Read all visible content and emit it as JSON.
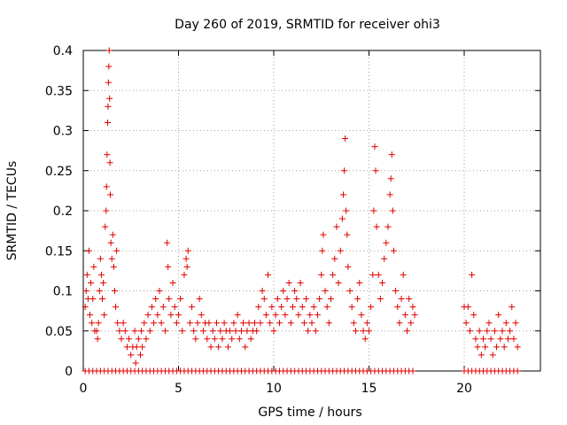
{
  "chart_data": {
    "type": "scatter",
    "title": "Day 260 of 2019, SRMTID for receiver ohi3",
    "xlabel": "GPS time / hours",
    "ylabel": "SRMTID / TECUs",
    "xlim": [
      0,
      24
    ],
    "ylim": [
      0,
      0.4
    ],
    "x_ticks": [
      0,
      5,
      10,
      15,
      20
    ],
    "x_tick_labels": [
      "0",
      "5",
      "10",
      "15",
      "20"
    ],
    "y_ticks": [
      0,
      0.05,
      0.1,
      0.15,
      0.2,
      0.25,
      0.3,
      0.35,
      0.4
    ],
    "y_tick_labels": [
      "0",
      "0.05",
      "0.1",
      "0.15",
      "0.2",
      "0.25",
      "0.3",
      "0.35",
      "0.4"
    ],
    "grid": true,
    "marker": "+",
    "color": "#e00000",
    "series": [
      {
        "name": "SRMTID",
        "points": [
          [
            0.1,
            0.08
          ],
          [
            0.15,
            0.1
          ],
          [
            0.2,
            0.12
          ],
          [
            0.25,
            0.09
          ],
          [
            0.3,
            0.15
          ],
          [
            0.35,
            0.07
          ],
          [
            0.4,
            0.11
          ],
          [
            0.45,
            0.06
          ],
          [
            0.5,
            0.09
          ],
          [
            0.55,
            0.13
          ],
          [
            0.6,
            0.05
          ],
          [
            0.7,
            0.05
          ],
          [
            0.75,
            0.04
          ],
          [
            0.8,
            0.06
          ],
          [
            0.85,
            0.1
          ],
          [
            0.9,
            0.14
          ],
          [
            0.95,
            0.12
          ],
          [
            1.0,
            0.09
          ],
          [
            1.05,
            0.11
          ],
          [
            1.1,
            0.07
          ],
          [
            1.15,
            0.18
          ],
          [
            1.2,
            0.2
          ],
          [
            1.22,
            0.23
          ],
          [
            1.25,
            0.27
          ],
          [
            1.28,
            0.31
          ],
          [
            1.3,
            0.33
          ],
          [
            1.32,
            0.36
          ],
          [
            1.34,
            0.38
          ],
          [
            1.36,
            0.4
          ],
          [
            1.38,
            0.34
          ],
          [
            1.4,
            0.26
          ],
          [
            1.42,
            0.22
          ],
          [
            1.45,
            0.16
          ],
          [
            1.5,
            0.14
          ],
          [
            1.55,
            0.17
          ],
          [
            1.6,
            0.13
          ],
          [
            1.65,
            0.1
          ],
          [
            1.7,
            0.08
          ],
          [
            1.75,
            0.15
          ],
          [
            1.8,
            0.06
          ],
          [
            1.9,
            0.05
          ],
          [
            2.0,
            0.04
          ],
          [
            2.1,
            0.06
          ],
          [
            2.2,
            0.05
          ],
          [
            2.3,
            0.03
          ],
          [
            2.4,
            0.04
          ],
          [
            2.5,
            0.02
          ],
          [
            2.6,
            0.03
          ],
          [
            2.7,
            0.05
          ],
          [
            2.75,
            0.01
          ],
          [
            2.8,
            0.03
          ],
          [
            2.9,
            0.04
          ],
          [
            3.0,
            0.02
          ],
          [
            3.05,
            0.05
          ],
          [
            3.1,
            0.03
          ],
          [
            3.2,
            0.06
          ],
          [
            3.3,
            0.04
          ],
          [
            3.4,
            0.07
          ],
          [
            3.5,
            0.05
          ],
          [
            3.6,
            0.08
          ],
          [
            3.7,
            0.06
          ],
          [
            3.8,
            0.09
          ],
          [
            3.9,
            0.07
          ],
          [
            4.0,
            0.1
          ],
          [
            4.1,
            0.06
          ],
          [
            4.2,
            0.08
          ],
          [
            4.3,
            0.05
          ],
          [
            4.4,
            0.16
          ],
          [
            4.45,
            0.13
          ],
          [
            4.5,
            0.09
          ],
          [
            4.6,
            0.07
          ],
          [
            4.7,
            0.11
          ],
          [
            4.8,
            0.08
          ],
          [
            4.9,
            0.06
          ],
          [
            5.0,
            0.07
          ],
          [
            5.1,
            0.09
          ],
          [
            5.2,
            0.05
          ],
          [
            5.3,
            0.12
          ],
          [
            5.4,
            0.14
          ],
          [
            5.45,
            0.13
          ],
          [
            5.5,
            0.15
          ],
          [
            5.6,
            0.06
          ],
          [
            5.7,
            0.08
          ],
          [
            5.8,
            0.05
          ],
          [
            5.9,
            0.04
          ],
          [
            6.0,
            0.06
          ],
          [
            6.1,
            0.09
          ],
          [
            6.2,
            0.07
          ],
          [
            6.3,
            0.05
          ],
          [
            6.4,
            0.06
          ],
          [
            6.5,
            0.04
          ],
          [
            6.6,
            0.06
          ],
          [
            6.7,
            0.03
          ],
          [
            6.8,
            0.05
          ],
          [
            6.9,
            0.04
          ],
          [
            7.0,
            0.06
          ],
          [
            7.1,
            0.03
          ],
          [
            7.2,
            0.05
          ],
          [
            7.3,
            0.04
          ],
          [
            7.4,
            0.06
          ],
          [
            7.5,
            0.05
          ],
          [
            7.6,
            0.03
          ],
          [
            7.7,
            0.05
          ],
          [
            7.8,
            0.04
          ],
          [
            7.9,
            0.06
          ],
          [
            8.0,
            0.05
          ],
          [
            8.1,
            0.07
          ],
          [
            8.2,
            0.04
          ],
          [
            8.3,
            0.05
          ],
          [
            8.4,
            0.06
          ],
          [
            8.5,
            0.03
          ],
          [
            8.6,
            0.05
          ],
          [
            8.7,
            0.06
          ],
          [
            8.8,
            0.04
          ],
          [
            8.9,
            0.05
          ],
          [
            9.0,
            0.06
          ],
          [
            9.1,
            0.05
          ],
          [
            9.2,
            0.08
          ],
          [
            9.3,
            0.06
          ],
          [
            9.4,
            0.1
          ],
          [
            9.5,
            0.09
          ],
          [
            9.6,
            0.07
          ],
          [
            9.7,
            0.12
          ],
          [
            9.8,
            0.06
          ],
          [
            9.9,
            0.08
          ],
          [
            10.0,
            0.05
          ],
          [
            10.1,
            0.07
          ],
          [
            10.2,
            0.09
          ],
          [
            10.3,
            0.06
          ],
          [
            10.4,
            0.08
          ],
          [
            10.5,
            0.1
          ],
          [
            10.6,
            0.07
          ],
          [
            10.7,
            0.09
          ],
          [
            10.8,
            0.11
          ],
          [
            10.9,
            0.06
          ],
          [
            11.0,
            0.08
          ],
          [
            11.1,
            0.1
          ],
          [
            11.2,
            0.09
          ],
          [
            11.3,
            0.07
          ],
          [
            11.4,
            0.11
          ],
          [
            11.5,
            0.08
          ],
          [
            11.6,
            0.06
          ],
          [
            11.7,
            0.09
          ],
          [
            11.8,
            0.05
          ],
          [
            11.9,
            0.07
          ],
          [
            12.0,
            0.06
          ],
          [
            12.1,
            0.08
          ],
          [
            12.2,
            0.05
          ],
          [
            12.3,
            0.07
          ],
          [
            12.4,
            0.09
          ],
          [
            12.5,
            0.12
          ],
          [
            12.55,
            0.15
          ],
          [
            12.6,
            0.17
          ],
          [
            12.7,
            0.1
          ],
          [
            12.8,
            0.08
          ],
          [
            12.9,
            0.06
          ],
          [
            13.0,
            0.09
          ],
          [
            13.1,
            0.12
          ],
          [
            13.2,
            0.14
          ],
          [
            13.3,
            0.18
          ],
          [
            13.4,
            0.11
          ],
          [
            13.5,
            0.15
          ],
          [
            13.6,
            0.19
          ],
          [
            13.65,
            0.22
          ],
          [
            13.7,
            0.25
          ],
          [
            13.75,
            0.29
          ],
          [
            13.8,
            0.2
          ],
          [
            13.85,
            0.17
          ],
          [
            13.9,
            0.13
          ],
          [
            14.0,
            0.1
          ],
          [
            14.1,
            0.08
          ],
          [
            14.2,
            0.06
          ],
          [
            14.3,
            0.05
          ],
          [
            14.4,
            0.09
          ],
          [
            14.5,
            0.11
          ],
          [
            14.6,
            0.07
          ],
          [
            14.7,
            0.05
          ],
          [
            14.8,
            0.04
          ],
          [
            14.9,
            0.06
          ],
          [
            15.0,
            0.05
          ],
          [
            15.1,
            0.08
          ],
          [
            15.2,
            0.12
          ],
          [
            15.25,
            0.2
          ],
          [
            15.3,
            0.28
          ],
          [
            15.35,
            0.25
          ],
          [
            15.4,
            0.18
          ],
          [
            15.5,
            0.12
          ],
          [
            15.6,
            0.09
          ],
          [
            15.7,
            0.11
          ],
          [
            15.8,
            0.14
          ],
          [
            15.9,
            0.16
          ],
          [
            16.0,
            0.18
          ],
          [
            16.1,
            0.22
          ],
          [
            16.15,
            0.24
          ],
          [
            16.2,
            0.27
          ],
          [
            16.25,
            0.2
          ],
          [
            16.3,
            0.15
          ],
          [
            16.4,
            0.1
          ],
          [
            16.5,
            0.08
          ],
          [
            16.6,
            0.06
          ],
          [
            16.7,
            0.09
          ],
          [
            16.8,
            0.12
          ],
          [
            16.9,
            0.07
          ],
          [
            17.0,
            0.05
          ],
          [
            17.1,
            0.09
          ],
          [
            17.2,
            0.06
          ],
          [
            17.3,
            0.08
          ],
          [
            17.4,
            0.07
          ],
          [
            20.0,
            0.08
          ],
          [
            20.1,
            0.06
          ],
          [
            20.2,
            0.08
          ],
          [
            20.3,
            0.05
          ],
          [
            20.4,
            0.12
          ],
          [
            20.5,
            0.07
          ],
          [
            20.6,
            0.04
          ],
          [
            20.7,
            0.03
          ],
          [
            20.8,
            0.05
          ],
          [
            20.9,
            0.02
          ],
          [
            21.0,
            0.04
          ],
          [
            21.1,
            0.03
          ],
          [
            21.2,
            0.05
          ],
          [
            21.3,
            0.06
          ],
          [
            21.4,
            0.04
          ],
          [
            21.5,
            0.02
          ],
          [
            21.6,
            0.05
          ],
          [
            21.7,
            0.03
          ],
          [
            21.8,
            0.07
          ],
          [
            21.9,
            0.04
          ],
          [
            22.0,
            0.05
          ],
          [
            22.1,
            0.03
          ],
          [
            22.2,
            0.06
          ],
          [
            22.3,
            0.04
          ],
          [
            22.4,
            0.05
          ],
          [
            22.5,
            0.08
          ],
          [
            22.6,
            0.04
          ],
          [
            22.7,
            0.06
          ],
          [
            22.8,
            0.03
          ]
        ]
      }
    ],
    "zero_value_times": [
      0.1,
      0.3,
      0.5,
      0.7,
      0.9,
      1.1,
      1.3,
      1.5,
      1.7,
      1.9,
      2.1,
      2.3,
      2.5,
      2.7,
      2.9,
      3.1,
      3.3,
      3.5,
      3.7,
      3.9,
      4.1,
      4.3,
      4.5,
      4.7,
      4.9,
      5.1,
      5.3,
      5.5,
      5.7,
      5.9,
      6.1,
      6.3,
      6.5,
      6.7,
      6.9,
      7.1,
      7.3,
      7.5,
      7.7,
      7.9,
      8.1,
      8.3,
      8.5,
      8.7,
      8.9,
      9.1,
      9.3,
      9.5,
      9.7,
      9.9,
      10.1,
      10.3,
      10.5,
      10.7,
      10.9,
      11.1,
      11.3,
      11.5,
      11.7,
      11.9,
      12.1,
      12.3,
      12.5,
      12.7,
      12.9,
      13.1,
      13.3,
      13.5,
      13.7,
      13.9,
      14.1,
      14.3,
      14.5,
      14.7,
      14.9,
      15.1,
      15.3,
      15.5,
      15.7,
      15.9,
      16.1,
      16.3,
      16.5,
      16.7,
      16.9,
      17.1,
      17.3,
      20.0,
      20.2,
      20.4,
      20.6,
      20.8,
      21.0,
      21.2,
      21.4,
      21.6,
      21.8,
      22.0,
      22.2,
      22.4,
      22.6,
      22.8
    ]
  }
}
